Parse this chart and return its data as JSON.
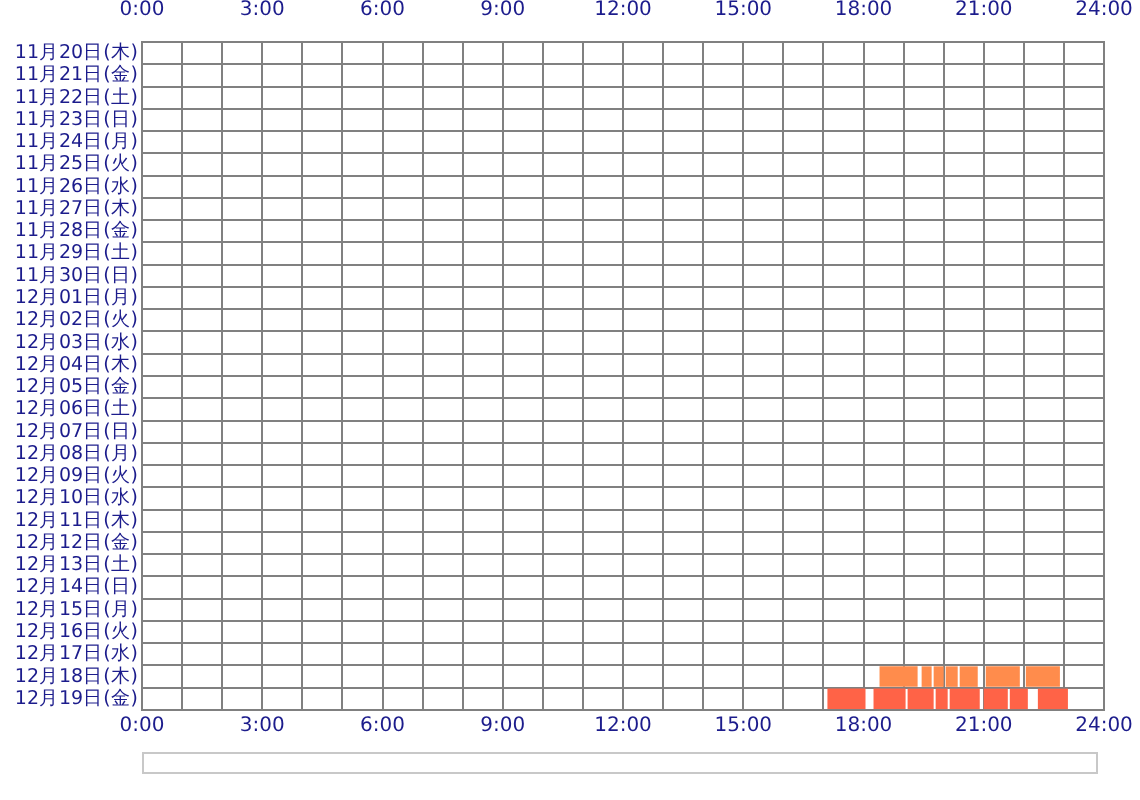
{
  "chart_data": {
    "type": "bar",
    "orientation": "horizontal",
    "categories": [
      "11月20日(木)",
      "11月21日(金)",
      "11月22日(土)",
      "11月23日(日)",
      "11月24日(月)",
      "11月25日(火)",
      "11月26日(水)",
      "11月27日(木)",
      "11月28日(金)",
      "11月29日(土)",
      "11月30日(日)",
      "12月01日(月)",
      "12月02日(火)",
      "12月03日(水)",
      "12月04日(木)",
      "12月05日(金)",
      "12月06日(土)",
      "12月07日(日)",
      "12月08日(月)",
      "12月09日(火)",
      "12月10日(水)",
      "12月11日(木)",
      "12月12日(金)",
      "12月13日(土)",
      "12月14日(日)",
      "12月15日(月)",
      "12月16日(火)",
      "12月17日(水)",
      "12月18日(木)",
      "12月19日(金)"
    ],
    "series": [
      {
        "values": [
          null,
          null,
          null,
          null,
          null,
          null,
          null,
          null,
          null,
          null,
          null,
          null,
          null,
          null,
          null,
          null,
          null,
          null,
          null,
          null,
          null,
          null,
          null,
          null,
          null,
          null,
          null,
          null,
          0.95,
          0.95
        ],
        "base": [
          null,
          null,
          null,
          null,
          null,
          null,
          null,
          null,
          null,
          null,
          null,
          null,
          null,
          null,
          null,
          null,
          null,
          null,
          null,
          null,
          null,
          null,
          null,
          null,
          null,
          null,
          null,
          null,
          18.4,
          17.1
        ],
        "colors": [
          null,
          null,
          null,
          null,
          null,
          null,
          null,
          null,
          null,
          null,
          null,
          null,
          null,
          null,
          null,
          null,
          null,
          null,
          null,
          null,
          null,
          null,
          null,
          null,
          null,
          null,
          null,
          null,
          "#ff8c4c",
          "#ff6347"
        ]
      },
      {
        "values": [
          null,
          null,
          null,
          null,
          null,
          null,
          null,
          null,
          null,
          null,
          null,
          null,
          null,
          null,
          null,
          null,
          null,
          null,
          null,
          null,
          null,
          null,
          null,
          null,
          null,
          null,
          null,
          null,
          0.25,
          0.8
        ],
        "base": [
          null,
          null,
          null,
          null,
          null,
          null,
          null,
          null,
          null,
          null,
          null,
          null,
          null,
          null,
          null,
          null,
          null,
          null,
          null,
          null,
          null,
          null,
          null,
          null,
          null,
          null,
          null,
          null,
          19.45,
          18.25
        ],
        "colors": [
          null,
          null,
          null,
          null,
          null,
          null,
          null,
          null,
          null,
          null,
          null,
          null,
          null,
          null,
          null,
          null,
          null,
          null,
          null,
          null,
          null,
          null,
          null,
          null,
          null,
          null,
          null,
          null,
          "#ff8c4c",
          "#ff6347"
        ]
      },
      {
        "values": [
          null,
          null,
          null,
          null,
          null,
          null,
          null,
          null,
          null,
          null,
          null,
          null,
          null,
          null,
          null,
          null,
          null,
          null,
          null,
          null,
          null,
          null,
          null,
          null,
          null,
          null,
          null,
          null,
          0.25,
          0.65
        ],
        "base": [
          null,
          null,
          null,
          null,
          null,
          null,
          null,
          null,
          null,
          null,
          null,
          null,
          null,
          null,
          null,
          null,
          null,
          null,
          null,
          null,
          null,
          null,
          null,
          null,
          null,
          null,
          null,
          null,
          19.75,
          19.1
        ],
        "colors": [
          null,
          null,
          null,
          null,
          null,
          null,
          null,
          null,
          null,
          null,
          null,
          null,
          null,
          null,
          null,
          null,
          null,
          null,
          null,
          null,
          null,
          null,
          null,
          null,
          null,
          null,
          null,
          null,
          "#ff8c4c",
          "#ff6347"
        ]
      },
      {
        "values": [
          null,
          null,
          null,
          null,
          null,
          null,
          null,
          null,
          null,
          null,
          null,
          null,
          null,
          null,
          null,
          null,
          null,
          null,
          null,
          null,
          null,
          null,
          null,
          null,
          null,
          null,
          null,
          null,
          0.3,
          0.3
        ],
        "base": [
          null,
          null,
          null,
          null,
          null,
          null,
          null,
          null,
          null,
          null,
          null,
          null,
          null,
          null,
          null,
          null,
          null,
          null,
          null,
          null,
          null,
          null,
          null,
          null,
          null,
          null,
          null,
          null,
          20.05,
          19.8
        ],
        "colors": [
          null,
          null,
          null,
          null,
          null,
          null,
          null,
          null,
          null,
          null,
          null,
          null,
          null,
          null,
          null,
          null,
          null,
          null,
          null,
          null,
          null,
          null,
          null,
          null,
          null,
          null,
          null,
          null,
          "#ff8c4c",
          "#ff6347"
        ]
      },
      {
        "values": [
          null,
          null,
          null,
          null,
          null,
          null,
          null,
          null,
          null,
          null,
          null,
          null,
          null,
          null,
          null,
          null,
          null,
          null,
          null,
          null,
          null,
          null,
          null,
          null,
          null,
          null,
          null,
          null,
          0.45,
          0.75
        ],
        "base": [
          null,
          null,
          null,
          null,
          null,
          null,
          null,
          null,
          null,
          null,
          null,
          null,
          null,
          null,
          null,
          null,
          null,
          null,
          null,
          null,
          null,
          null,
          null,
          null,
          null,
          null,
          null,
          null,
          20.4,
          20.15
        ],
        "colors": [
          null,
          null,
          null,
          null,
          null,
          null,
          null,
          null,
          null,
          null,
          null,
          null,
          null,
          null,
          null,
          null,
          null,
          null,
          null,
          null,
          null,
          null,
          null,
          null,
          null,
          null,
          null,
          null,
          "#ff8c4c",
          "#ff6347"
        ]
      },
      {
        "values": [
          null,
          null,
          null,
          null,
          null,
          null,
          null,
          null,
          null,
          null,
          null,
          null,
          null,
          null,
          null,
          null,
          null,
          null,
          null,
          null,
          null,
          null,
          null,
          null,
          null,
          null,
          null,
          null,
          0.85,
          0.6
        ],
        "base": [
          null,
          null,
          null,
          null,
          null,
          null,
          null,
          null,
          null,
          null,
          null,
          null,
          null,
          null,
          null,
          null,
          null,
          null,
          null,
          null,
          null,
          null,
          null,
          null,
          null,
          null,
          null,
          null,
          21.05,
          21.0
        ],
        "colors": [
          null,
          null,
          null,
          null,
          null,
          null,
          null,
          null,
          null,
          null,
          null,
          null,
          null,
          null,
          null,
          null,
          null,
          null,
          null,
          null,
          null,
          null,
          null,
          null,
          null,
          null,
          null,
          null,
          "#ff8c4c",
          "#ff6347"
        ]
      },
      {
        "values": [
          null,
          null,
          null,
          null,
          null,
          null,
          null,
          null,
          null,
          null,
          null,
          null,
          null,
          null,
          null,
          null,
          null,
          null,
          null,
          null,
          null,
          null,
          null,
          null,
          null,
          null,
          null,
          null,
          0.85,
          0.45
        ],
        "base": [
          null,
          null,
          null,
          null,
          null,
          null,
          null,
          null,
          null,
          null,
          null,
          null,
          null,
          null,
          null,
          null,
          null,
          null,
          null,
          null,
          null,
          null,
          null,
          null,
          null,
          null,
          null,
          null,
          22.05,
          21.65
        ],
        "colors": [
          null,
          null,
          null,
          null,
          null,
          null,
          null,
          null,
          null,
          null,
          null,
          null,
          null,
          null,
          null,
          null,
          null,
          null,
          null,
          null,
          null,
          null,
          null,
          null,
          null,
          null,
          null,
          null,
          "#ff8c4c",
          "#ff6347"
        ]
      },
      {
        "values": [
          null,
          null,
          null,
          null,
          null,
          null,
          null,
          null,
          null,
          null,
          null,
          null,
          null,
          null,
          null,
          null,
          null,
          null,
          null,
          null,
          null,
          null,
          null,
          null,
          null,
          null,
          null,
          null,
          null,
          0.75
        ],
        "base": [
          null,
          null,
          null,
          null,
          null,
          null,
          null,
          null,
          null,
          null,
          null,
          null,
          null,
          null,
          null,
          null,
          null,
          null,
          null,
          null,
          null,
          null,
          null,
          null,
          null,
          null,
          null,
          null,
          null,
          22.35
        ],
        "colors": [
          null,
          null,
          null,
          null,
          null,
          null,
          null,
          null,
          null,
          null,
          null,
          null,
          null,
          null,
          null,
          null,
          null,
          null,
          null,
          null,
          null,
          null,
          null,
          null,
          null,
          null,
          null,
          null,
          null,
          "#ff6347"
        ]
      }
    ],
    "xlim": [
      0,
      24
    ],
    "xticks": [
      {
        "value": 0,
        "label": "0:00"
      },
      {
        "value": 1,
        "label": null
      },
      {
        "value": 2,
        "label": null
      },
      {
        "value": 3,
        "label": "3:00"
      },
      {
        "value": 4,
        "label": null
      },
      {
        "value": 5,
        "label": null
      },
      {
        "value": 6,
        "label": "6:00"
      },
      {
        "value": 7,
        "label": null
      },
      {
        "value": 8,
        "label": null
      },
      {
        "value": 9,
        "label": "9:00"
      },
      {
        "value": 10,
        "label": null
      },
      {
        "value": 11,
        "label": null
      },
      {
        "value": 12,
        "label": "12:00"
      },
      {
        "value": 13,
        "label": null
      },
      {
        "value": 14,
        "label": null
      },
      {
        "value": 15,
        "label": "15:00"
      },
      {
        "value": 16,
        "label": null
      },
      {
        "value": 17,
        "label": null
      },
      {
        "value": 18,
        "label": "18:00"
      },
      {
        "value": 19,
        "label": null
      },
      {
        "value": 20,
        "label": null
      },
      {
        "value": 21,
        "label": "21:00"
      },
      {
        "value": 22,
        "label": null
      },
      {
        "value": 23,
        "label": null
      },
      {
        "value": 24,
        "label": "24:00"
      }
    ],
    "x2lim": [
      0,
      24
    ],
    "x2ticks": [
      {
        "value": 0,
        "label": "0:00"
      },
      {
        "value": 1,
        "label": null
      },
      {
        "value": 2,
        "label": null
      },
      {
        "value": 3,
        "label": "3:00"
      },
      {
        "value": 4,
        "label": null
      },
      {
        "value": 5,
        "label": null
      },
      {
        "value": 6,
        "label": "6:00"
      },
      {
        "value": 7,
        "label": null
      },
      {
        "value": 8,
        "label": null
      },
      {
        "value": 9,
        "label": "9:00"
      },
      {
        "value": 10,
        "label": null
      },
      {
        "value": 11,
        "label": null
      },
      {
        "value": 12,
        "label": "12:00"
      },
      {
        "value": 13,
        "label": null
      },
      {
        "value": 14,
        "label": null
      },
      {
        "value": 15,
        "label": "15:00"
      },
      {
        "value": 16,
        "label": null
      },
      {
        "value": 17,
        "label": null
      },
      {
        "value": 18,
        "label": "18:00"
      },
      {
        "value": 19,
        "label": null
      },
      {
        "value": 20,
        "label": null
      },
      {
        "value": 21,
        "label": "21:00"
      },
      {
        "value": 22,
        "label": null
      },
      {
        "value": 23,
        "label": null
      },
      {
        "value": 24,
        "label": "24:00"
      }
    ],
    "grid": true,
    "legend": false
  }
}
